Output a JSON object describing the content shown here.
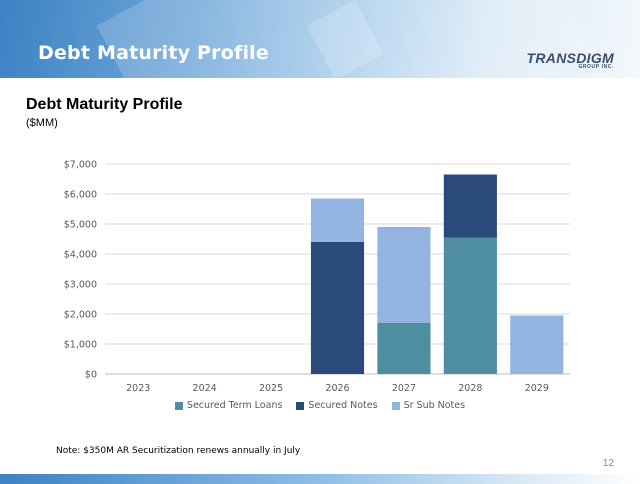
{
  "header": {
    "banner_title": "Debt Maturity Profile",
    "logo_text": "TRANSDIGM",
    "logo_subtext": "GROUP INC."
  },
  "title": "Debt Maturity Profile",
  "subtitle": "($MM)",
  "note": "Note: $350M AR Securitization renews annually in July",
  "page_number": "12",
  "chart_data": {
    "type": "bar",
    "stacked": true,
    "categories": [
      "2023",
      "2024",
      "2025",
      "2026",
      "2027",
      "2028",
      "2029"
    ],
    "series": [
      {
        "name": "Secured Term Loans",
        "color": "#4e8ea0",
        "values": [
          0,
          0,
          0,
          0,
          1700,
          4550,
          0
        ]
      },
      {
        "name": "Secured Notes",
        "color": "#2b4a7c",
        "values": [
          0,
          0,
          0,
          4400,
          0,
          2100,
          0
        ]
      },
      {
        "name": "Sr Sub Notes",
        "color": "#93b4e0",
        "values": [
          0,
          0,
          0,
          1450,
          3200,
          0,
          1950
        ]
      }
    ],
    "ylim": [
      0,
      7000
    ],
    "yticks": [
      0,
      1000,
      2000,
      3000,
      4000,
      5000,
      6000,
      7000
    ],
    "ytick_labels": [
      "$0",
      "$1,000",
      "$2,000",
      "$3,000",
      "$4,000",
      "$5,000",
      "$6,000",
      "$7,000"
    ],
    "grid": true,
    "legend_position": "bottom"
  }
}
